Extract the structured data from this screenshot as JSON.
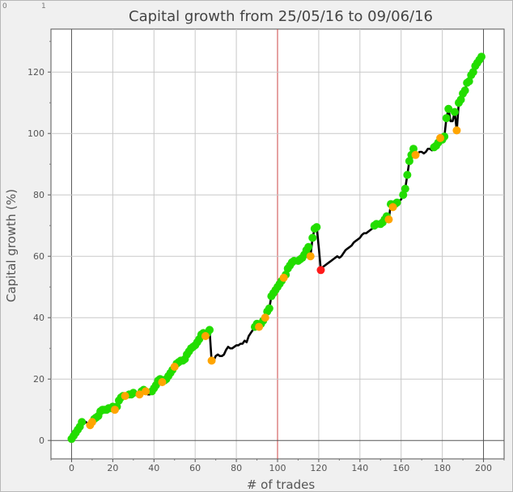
{
  "corner": {
    "left": "0",
    "right": "1"
  },
  "chart_data": {
    "type": "scatter",
    "title": "Capital growth from 25/05/16 to 09/06/16",
    "xlabel": "# of trades",
    "ylabel": "Capital growth (%)",
    "xlim": [
      -10,
      210
    ],
    "ylim": [
      -6,
      134
    ],
    "xticks": [
      0,
      20,
      40,
      60,
      80,
      100,
      120,
      140,
      160,
      180,
      200
    ],
    "yticks": [
      0,
      20,
      40,
      60,
      80,
      100,
      120
    ],
    "reference_line_x": 100,
    "grid": true,
    "colors": {
      "line": "#000000",
      "win": "#22dd00",
      "small": "#ffa500",
      "loss": "#ff1a1a",
      "ref": "#cc4444"
    },
    "line": [
      [
        0,
        0.5
      ],
      [
        1,
        1.5
      ],
      [
        2,
        2.5
      ],
      [
        3,
        3.5
      ],
      [
        4,
        4.5
      ],
      [
        5,
        6
      ],
      [
        6,
        5.5
      ],
      [
        7,
        6
      ],
      [
        8,
        5.5
      ],
      [
        9,
        5
      ],
      [
        10,
        6
      ],
      [
        11,
        7
      ],
      [
        12,
        7.5
      ],
      [
        13,
        8
      ],
      [
        14,
        9.5
      ],
      [
        15,
        10
      ],
      [
        16,
        10
      ],
      [
        17,
        10
      ],
      [
        18,
        10.5
      ],
      [
        19,
        10.5
      ],
      [
        20,
        11
      ],
      [
        21,
        10
      ],
      [
        22,
        11
      ],
      [
        23,
        13
      ],
      [
        24,
        14
      ],
      [
        25,
        14.5
      ],
      [
        26,
        14.5
      ],
      [
        27,
        14
      ],
      [
        28,
        15
      ],
      [
        29,
        15
      ],
      [
        30,
        15.5
      ],
      [
        31,
        15.5
      ],
      [
        32,
        15.5
      ],
      [
        33,
        15
      ],
      [
        34,
        16
      ],
      [
        35,
        16.5
      ],
      [
        36,
        16
      ],
      [
        37,
        15
      ],
      [
        38,
        15
      ],
      [
        39,
        16
      ],
      [
        40,
        17
      ],
      [
        41,
        18
      ],
      [
        42,
        19.5
      ],
      [
        43,
        20
      ],
      [
        44,
        19
      ],
      [
        45,
        19.5
      ],
      [
        46,
        20
      ],
      [
        47,
        21
      ],
      [
        48,
        22
      ],
      [
        49,
        23
      ],
      [
        50,
        24
      ],
      [
        51,
        25
      ],
      [
        52,
        25.5
      ],
      [
        53,
        26
      ],
      [
        54,
        26
      ],
      [
        55,
        26.5
      ],
      [
        56,
        28
      ],
      [
        57,
        29
      ],
      [
        58,
        30
      ],
      [
        59,
        30.5
      ],
      [
        60,
        31
      ],
      [
        61,
        32
      ],
      [
        62,
        33
      ],
      [
        63,
        34.5
      ],
      [
        64,
        35
      ],
      [
        65,
        34
      ],
      [
        66,
        35
      ],
      [
        67,
        36
      ],
      [
        68,
        26
      ],
      [
        69,
        26
      ],
      [
        70,
        27.5
      ],
      [
        71,
        28
      ],
      [
        72,
        27.5
      ],
      [
        73,
        27.5
      ],
      [
        74,
        28
      ],
      [
        75,
        29.5
      ],
      [
        76,
        30.5
      ],
      [
        77,
        30
      ],
      [
        78,
        30
      ],
      [
        79,
        30.5
      ],
      [
        80,
        31
      ],
      [
        81,
        31
      ],
      [
        82,
        31.5
      ],
      [
        83,
        31.5
      ],
      [
        84,
        32.5
      ],
      [
        85,
        32
      ],
      [
        86,
        34
      ],
      [
        87,
        35
      ],
      [
        88,
        36
      ],
      [
        89,
        37
      ],
      [
        90,
        38
      ],
      [
        91,
        37
      ],
      [
        92,
        38
      ],
      [
        93,
        39
      ],
      [
        94,
        40
      ],
      [
        95,
        42
      ],
      [
        96,
        43
      ],
      [
        97,
        47
      ],
      [
        98,
        48
      ],
      [
        99,
        49
      ],
      [
        100,
        50
      ],
      [
        101,
        51
      ],
      [
        102,
        52
      ],
      [
        103,
        53
      ],
      [
        104,
        54
      ],
      [
        105,
        56
      ],
      [
        106,
        57
      ],
      [
        107,
        58
      ],
      [
        108,
        58.5
      ],
      [
        109,
        58
      ],
      [
        110,
        58.5
      ],
      [
        111,
        59
      ],
      [
        112,
        59.5
      ],
      [
        113,
        60.5
      ],
      [
        114,
        62
      ],
      [
        115,
        63
      ],
      [
        116,
        60
      ],
      [
        117,
        66
      ],
      [
        118,
        69
      ],
      [
        119,
        69.5
      ],
      [
        120,
        63
      ],
      [
        121,
        55.5
      ],
      [
        122,
        56.5
      ],
      [
        123,
        57
      ],
      [
        124,
        57.5
      ],
      [
        125,
        58
      ],
      [
        126,
        58.5
      ],
      [
        127,
        59
      ],
      [
        128,
        59.5
      ],
      [
        129,
        60
      ],
      [
        130,
        59.5
      ],
      [
        131,
        60
      ],
      [
        132,
        61
      ],
      [
        133,
        62
      ],
      [
        134,
        62.5
      ],
      [
        135,
        63
      ],
      [
        136,
        63.5
      ],
      [
        137,
        64.5
      ],
      [
        138,
        65
      ],
      [
        139,
        65.5
      ],
      [
        140,
        66
      ],
      [
        141,
        67
      ],
      [
        142,
        67.5
      ],
      [
        143,
        67.5
      ],
      [
        144,
        68
      ],
      [
        145,
        68.5
      ],
      [
        146,
        69
      ],
      [
        147,
        70
      ],
      [
        148,
        70.5
      ],
      [
        149,
        70
      ],
      [
        150,
        70.5
      ],
      [
        151,
        71
      ],
      [
        152,
        72
      ],
      [
        153,
        73
      ],
      [
        154,
        72
      ],
      [
        155,
        77
      ],
      [
        156,
        76
      ],
      [
        157,
        77
      ],
      [
        158,
        77.5
      ],
      [
        159,
        78
      ],
      [
        160,
        78.5
      ],
      [
        161,
        80
      ],
      [
        162,
        82
      ],
      [
        163,
        86.5
      ],
      [
        164,
        91
      ],
      [
        165,
        93
      ],
      [
        166,
        95
      ],
      [
        167,
        93
      ],
      [
        168,
        93.5
      ],
      [
        169,
        94
      ],
      [
        170,
        94
      ],
      [
        171,
        93.5
      ],
      [
        172,
        94
      ],
      [
        173,
        95
      ],
      [
        174,
        95
      ],
      [
        175,
        94.5
      ],
      [
        176,
        95.5
      ],
      [
        177,
        96
      ],
      [
        178,
        97
      ],
      [
        179,
        98.5
      ],
      [
        180,
        98
      ],
      [
        181,
        99
      ],
      [
        182,
        105
      ],
      [
        183,
        108
      ],
      [
        184,
        104
      ],
      [
        185,
        104
      ],
      [
        186,
        107
      ],
      [
        187,
        101
      ],
      [
        188,
        110
      ],
      [
        189,
        111
      ],
      [
        190,
        113
      ],
      [
        191,
        114
      ],
      [
        192,
        116.5
      ],
      [
        193,
        117
      ],
      [
        194,
        119
      ],
      [
        195,
        120
      ],
      [
        196,
        122
      ],
      [
        197,
        123
      ],
      [
        198,
        124
      ],
      [
        199,
        125
      ]
    ],
    "win_points": [
      [
        0,
        0.5
      ],
      [
        1,
        1.5
      ],
      [
        2,
        2.5
      ],
      [
        3,
        3.5
      ],
      [
        4,
        4.5
      ],
      [
        5,
        6
      ],
      [
        11,
        7
      ],
      [
        12,
        7.5
      ],
      [
        13,
        8
      ],
      [
        14,
        9.5
      ],
      [
        15,
        10
      ],
      [
        16,
        10
      ],
      [
        17,
        10
      ],
      [
        18,
        10.5
      ],
      [
        19,
        10.5
      ],
      [
        20,
        11
      ],
      [
        22,
        11
      ],
      [
        23,
        13
      ],
      [
        24,
        14
      ],
      [
        25,
        14.5
      ],
      [
        28,
        15
      ],
      [
        29,
        15
      ],
      [
        30,
        15.5
      ],
      [
        34,
        16
      ],
      [
        35,
        16.5
      ],
      [
        39,
        16
      ],
      [
        40,
        17
      ],
      [
        41,
        18
      ],
      [
        42,
        19.5
      ],
      [
        43,
        20
      ],
      [
        45,
        19.5
      ],
      [
        46,
        20
      ],
      [
        47,
        21
      ],
      [
        48,
        22
      ],
      [
        49,
        23
      ],
      [
        51,
        25
      ],
      [
        52,
        25.5
      ],
      [
        53,
        26
      ],
      [
        54,
        26
      ],
      [
        55,
        26.5
      ],
      [
        56,
        28
      ],
      [
        57,
        29
      ],
      [
        58,
        30
      ],
      [
        59,
        30.5
      ],
      [
        60,
        31
      ],
      [
        61,
        32
      ],
      [
        62,
        33
      ],
      [
        63,
        34.5
      ],
      [
        64,
        35
      ],
      [
        66,
        35
      ],
      [
        67,
        36
      ],
      [
        89,
        37
      ],
      [
        90,
        38
      ],
      [
        92,
        38
      ],
      [
        93,
        39
      ],
      [
        95,
        42
      ],
      [
        96,
        43
      ],
      [
        97,
        47
      ],
      [
        98,
        48
      ],
      [
        99,
        49
      ],
      [
        100,
        50
      ],
      [
        101,
        51
      ],
      [
        102,
        52
      ],
      [
        104,
        54
      ],
      [
        105,
        56
      ],
      [
        106,
        57
      ],
      [
        107,
        58
      ],
      [
        108,
        58.5
      ],
      [
        110,
        58.5
      ],
      [
        111,
        59
      ],
      [
        112,
        59.5
      ],
      [
        113,
        60.5
      ],
      [
        114,
        62
      ],
      [
        115,
        63
      ],
      [
        117,
        66
      ],
      [
        118,
        69
      ],
      [
        119,
        69.5
      ],
      [
        147,
        70
      ],
      [
        148,
        70.5
      ],
      [
        150,
        70.5
      ],
      [
        151,
        71
      ],
      [
        152,
        72
      ],
      [
        153,
        73
      ],
      [
        155,
        77
      ],
      [
        157,
        77
      ],
      [
        158,
        77.5
      ],
      [
        161,
        80
      ],
      [
        162,
        82
      ],
      [
        163,
        86.5
      ],
      [
        164,
        91
      ],
      [
        165,
        93
      ],
      [
        166,
        95
      ],
      [
        176,
        95.5
      ],
      [
        177,
        96
      ],
      [
        178,
        97
      ],
      [
        180,
        98
      ],
      [
        181,
        99
      ],
      [
        182,
        105
      ],
      [
        183,
        108
      ],
      [
        186,
        107
      ],
      [
        188,
        110
      ],
      [
        189,
        111
      ],
      [
        190,
        113
      ],
      [
        191,
        114
      ],
      [
        192,
        116.5
      ],
      [
        193,
        117
      ],
      [
        194,
        119
      ],
      [
        195,
        120
      ],
      [
        196,
        122
      ],
      [
        197,
        123
      ],
      [
        198,
        124
      ],
      [
        199,
        125
      ]
    ],
    "small_points": [
      [
        9,
        5
      ],
      [
        10,
        6
      ],
      [
        21,
        10
      ],
      [
        26,
        14.5
      ],
      [
        33,
        15
      ],
      [
        36,
        16
      ],
      [
        44,
        19
      ],
      [
        50,
        24
      ],
      [
        65,
        34
      ],
      [
        68,
        26
      ],
      [
        91,
        37
      ],
      [
        94,
        40
      ],
      [
        103,
        53
      ],
      [
        116,
        60
      ],
      [
        154,
        72
      ],
      [
        156,
        76
      ],
      [
        167,
        93
      ],
      [
        179,
        98.5
      ],
      [
        187,
        101
      ]
    ],
    "loss_points": [
      [
        121,
        55.5
      ]
    ]
  }
}
